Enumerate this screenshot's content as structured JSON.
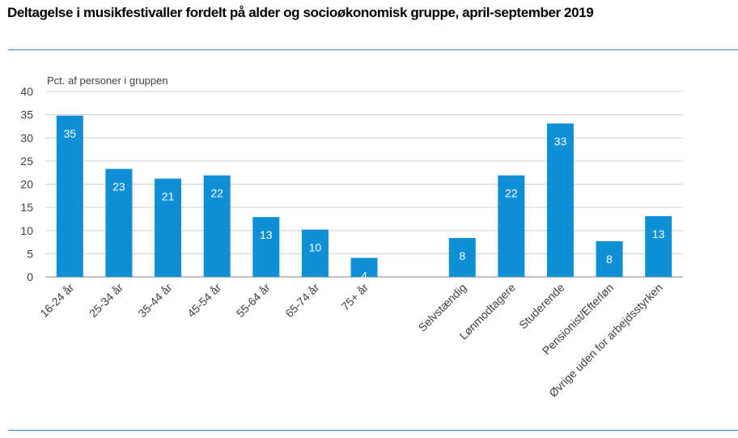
{
  "chart_data": {
    "type": "bar",
    "title": "Deltagelse i musikfestivaller fordelt på alder og socioøkonomisk gruppe, april-september 2019",
    "ylabel": "Pct. af  personer i gruppen",
    "ylim": [
      0,
      40
    ],
    "yticks": [
      0,
      5,
      10,
      15,
      20,
      25,
      30,
      35,
      40
    ],
    "grid": true,
    "bar_color": "#0f8fd6",
    "rule_color": "#3a8fd0",
    "categories": [
      "16-24 år",
      "25-34 år",
      "35-44 år",
      "45-54 år",
      "55-64 år",
      "65-74 år",
      "75+ år",
      "",
      "Selvstændig",
      "Lønmodtagere",
      "Studerende",
      "Pensionist/Efterløn",
      "Øvrige uden for arbejdsstyrken"
    ],
    "values": [
      34.8,
      23.3,
      21.2,
      21.9,
      12.9,
      10.2,
      4.1,
      null,
      8.4,
      21.9,
      33.1,
      7.7,
      13.1
    ],
    "value_labels": [
      "35",
      "23",
      "21",
      "22",
      "13",
      "10",
      "4",
      "",
      "8",
      "22",
      "33",
      "8",
      "13"
    ]
  }
}
